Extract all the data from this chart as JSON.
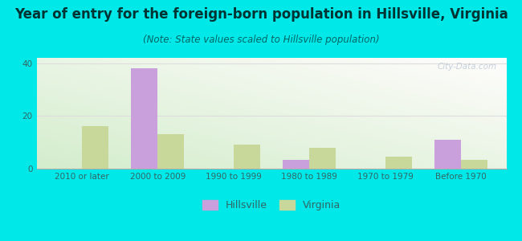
{
  "title": "Year of entry for the foreign-born population in Hillsville, Virginia",
  "subtitle": "(Note: State values scaled to Hillsville population)",
  "categories": [
    "2010 or later",
    "2000 to 2009",
    "1990 to 1999",
    "1980 to 1989",
    "1970 to 1979",
    "Before 1970"
  ],
  "hillsville_values": [
    0,
    38,
    0,
    3.5,
    0,
    11
  ],
  "virginia_values": [
    16,
    13,
    9,
    8,
    4.5,
    3.5
  ],
  "hillsville_color": "#c9a0dc",
  "virginia_color": "#c8d89a",
  "figure_bg_color": "#00e8e8",
  "ylim": [
    0,
    42
  ],
  "yticks": [
    0,
    20,
    40
  ],
  "bar_width": 0.35,
  "legend_hillsville": "Hillsville",
  "legend_virginia": "Virginia",
  "watermark": "City-Data.com",
  "title_fontsize": 12,
  "subtitle_fontsize": 8.5,
  "axis_fontsize": 7.5,
  "legend_fontsize": 9,
  "title_color": "#003333",
  "subtitle_color": "#006666",
  "tick_color": "#336666",
  "grid_color": "#dddddd",
  "spine_color": "#aaaaaa"
}
